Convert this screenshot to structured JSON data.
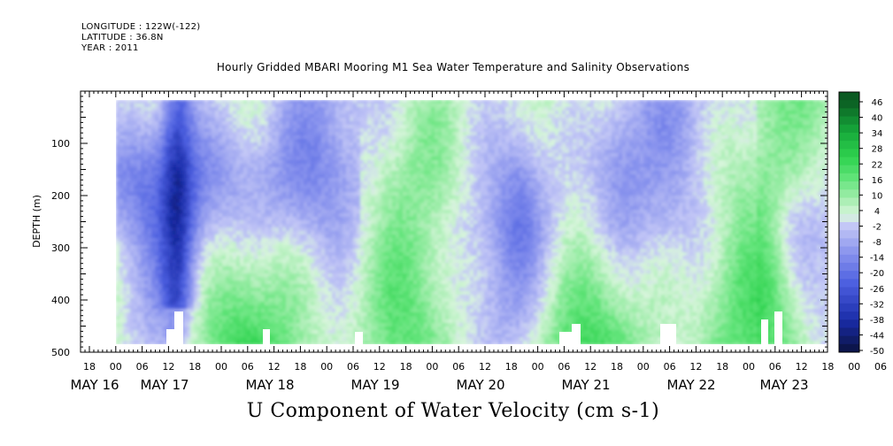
{
  "meta": {
    "longitude": "LONGITUDE : 122W(-122)",
    "latitude": "LATITUDE : 36.8N",
    "year": "YEAR : 2011"
  },
  "plot_title": "Hourly Gridded MBARI Mooring M1 Sea Water Temperature and Salinity Observations",
  "variable_title": "U Component of Water Velocity (cm s-1)",
  "chart_data": {
    "type": "heatmap",
    "title": "Hourly Gridded MBARI Mooring M1 Sea Water Temperature and Salinity Observations",
    "xlabel": "",
    "ylabel": "DEPTH (m)",
    "colorbar_label": "U Component of Water Velocity (cm s-1)",
    "ylim": [
      500,
      0
    ],
    "y_ticks": [
      100,
      200,
      300,
      400,
      500
    ],
    "x_hour_labels": [
      "18",
      "00",
      "06",
      "12",
      "18",
      "00",
      "06",
      "12",
      "18",
      "00",
      "06",
      "12",
      "18",
      "00",
      "06",
      "12",
      "18",
      "00",
      "06",
      "12",
      "18",
      "00",
      "06",
      "12",
      "18",
      "00",
      "06",
      "12",
      "18",
      "00",
      "06",
      "12"
    ],
    "x_date_labels": [
      "MAY 16",
      "MAY 17",
      "MAY 18",
      "MAY 19",
      "MAY 20",
      "MAY 21",
      "MAY 22",
      "MAY 23"
    ],
    "colorbar_levels": [
      46,
      40,
      34,
      28,
      22,
      16,
      10,
      4,
      -2,
      -8,
      -14,
      -20,
      -26,
      -32,
      -38,
      -44,
      -50
    ],
    "colors": {
      "strong_negative": "#0a1e9c",
      "negative": "#5a6ee8",
      "weak_negative": "#b7bcf4",
      "weak_positive": "#a6eeb0",
      "positive": "#3ce05a",
      "strong_positive": "#0b6a22"
    }
  }
}
